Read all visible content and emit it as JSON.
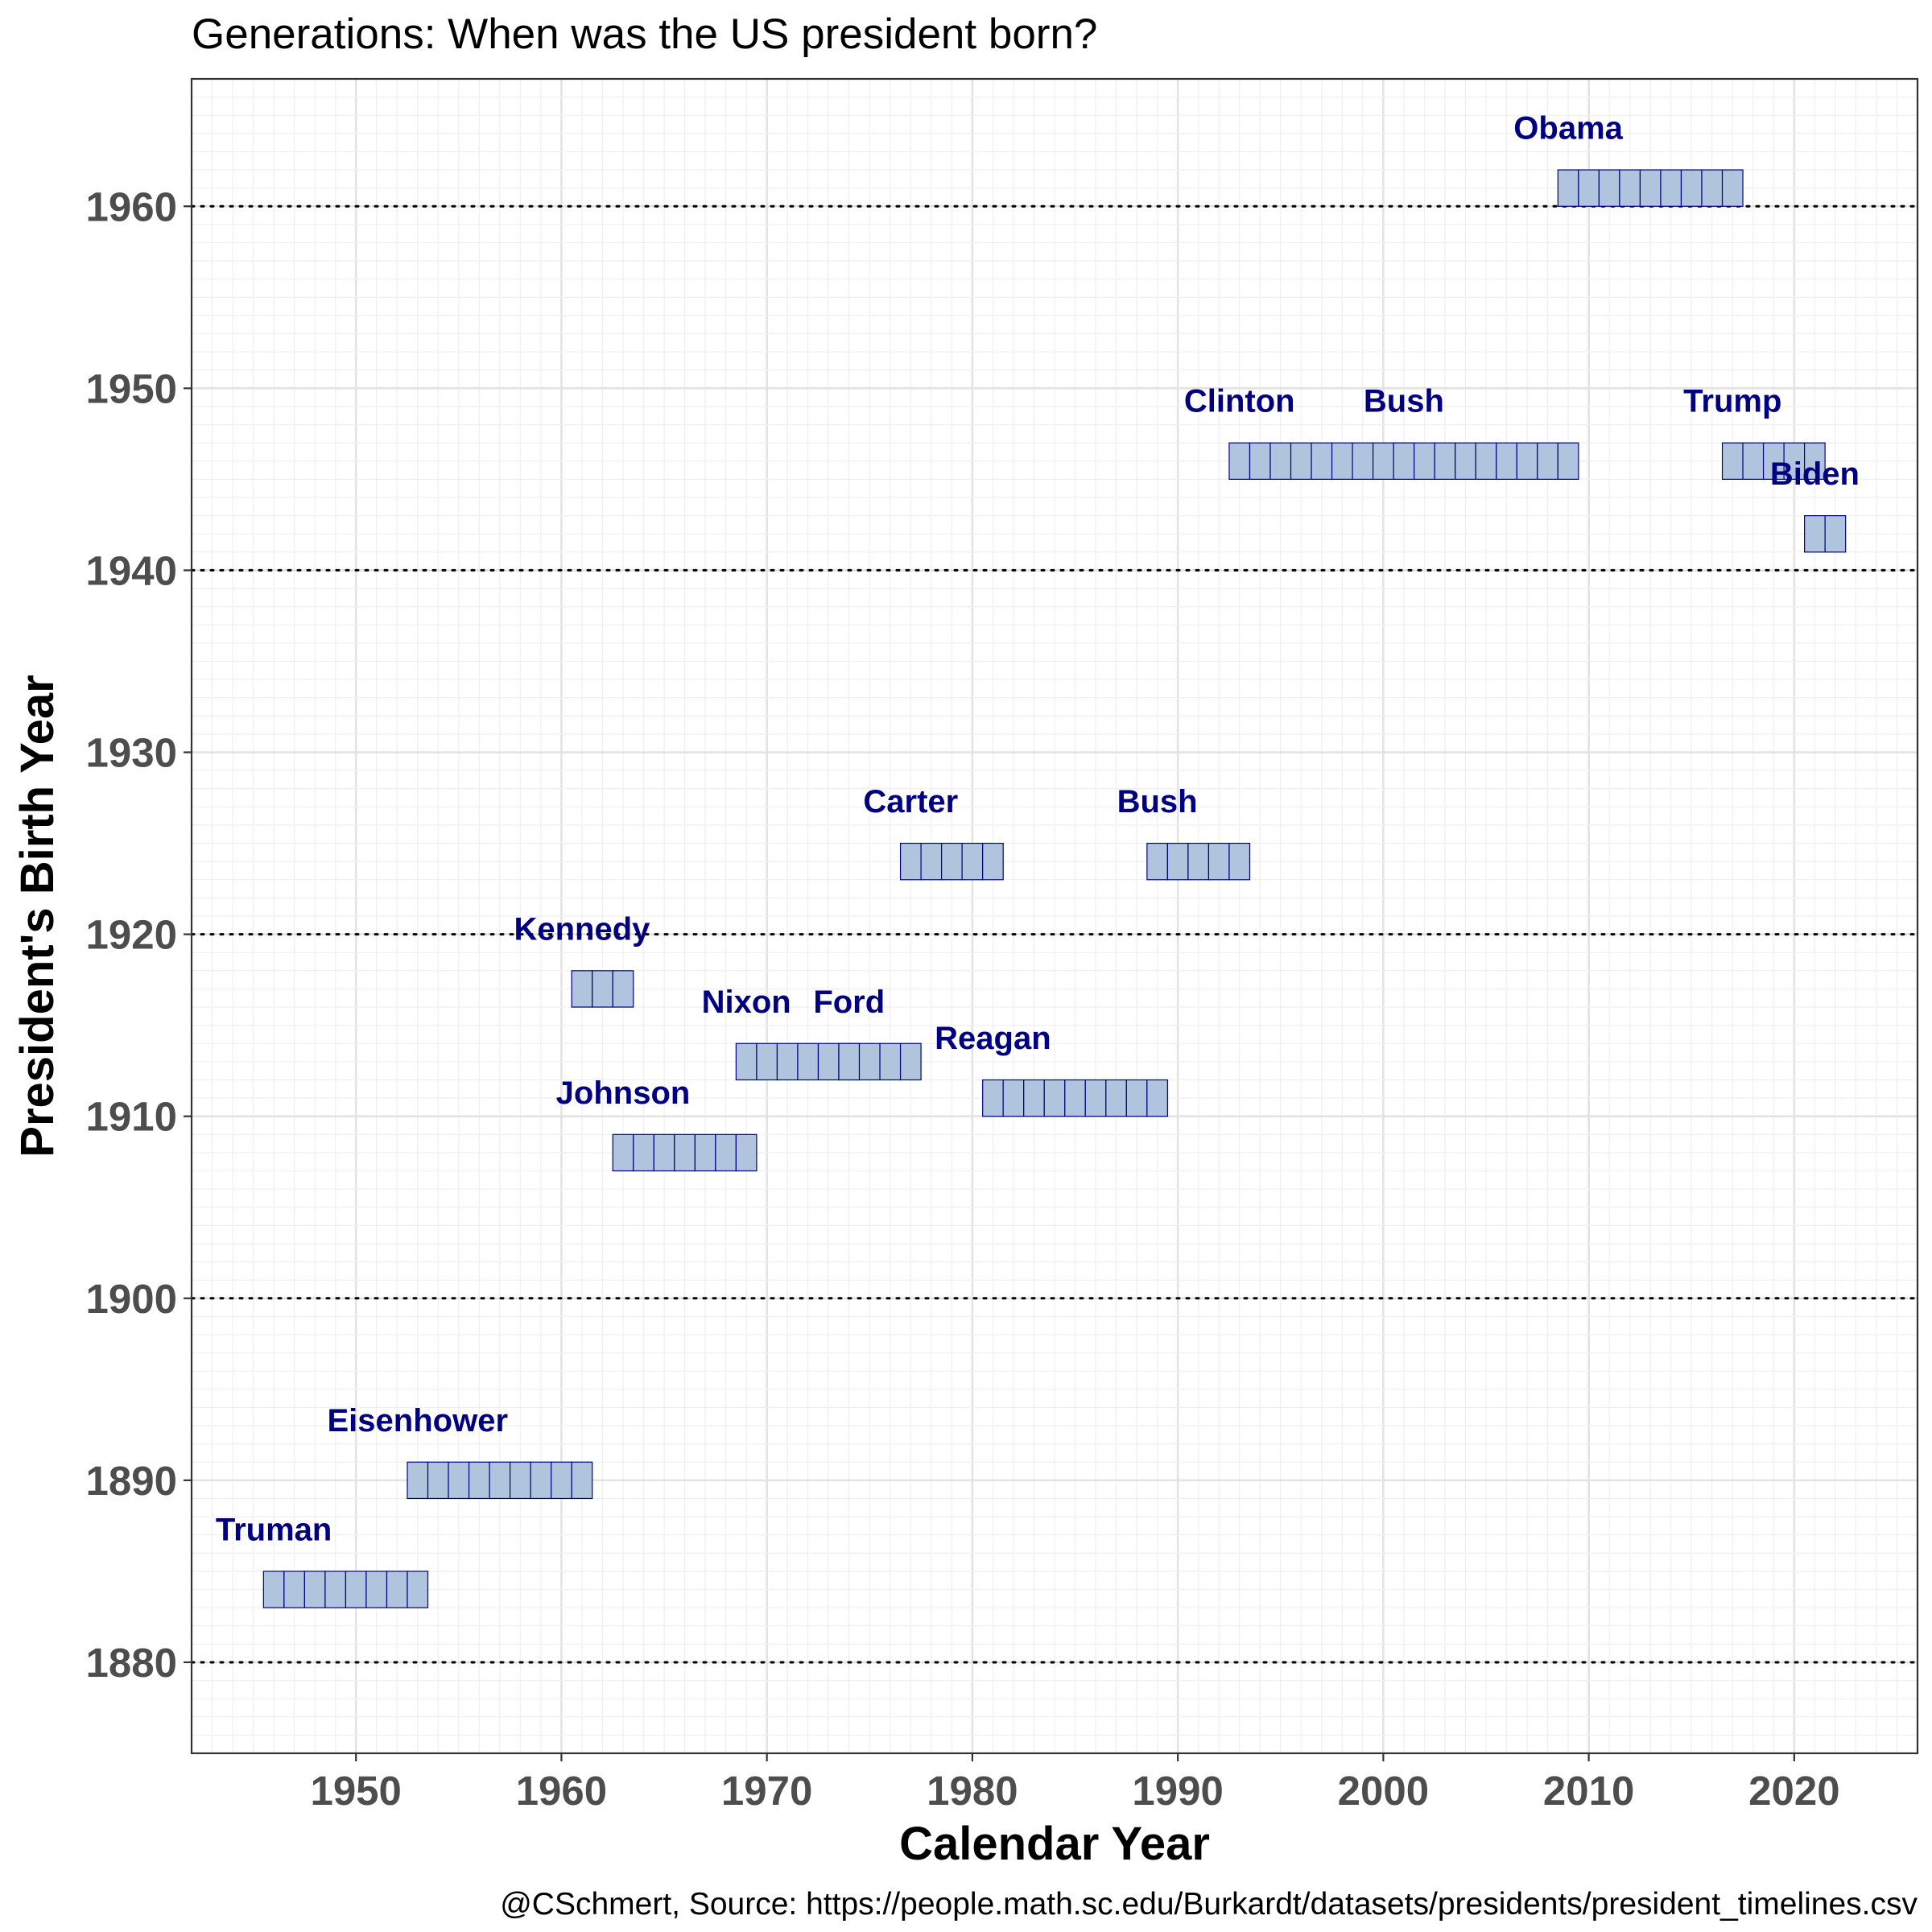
{
  "chart_data": {
    "type": "tile",
    "title": "Generations: When was the US president born?",
    "xlabel": "Calendar Year",
    "ylabel": "President's Birth Year",
    "caption": "@CSchmert, Source: https://people.math.sc.edu/Burkardt/datasets/presidents/president_timelines.csv",
    "xlim": [
      1942,
      2026
    ],
    "ylim": [
      1875,
      1967
    ],
    "x_ticks": [
      1950,
      1960,
      1970,
      1980,
      1990,
      2000,
      2010,
      2020
    ],
    "y_ticks": [
      1880,
      1890,
      1900,
      1910,
      1920,
      1930,
      1940,
      1950,
      1960
    ],
    "reference_lines_y": [
      1880,
      1900,
      1920,
      1940,
      1960
    ],
    "grid": true,
    "tile_fill": "#b0c4de",
    "tile_stroke": "#000080",
    "label_color": "#000080",
    "presidents": [
      {
        "name": "Truman",
        "birth_year": 1884,
        "years": [
          1946,
          1947,
          1948,
          1949,
          1950,
          1951,
          1952,
          1953
        ]
      },
      {
        "name": "Eisenhower",
        "birth_year": 1890,
        "years": [
          1953,
          1954,
          1955,
          1956,
          1957,
          1958,
          1959,
          1960,
          1961
        ]
      },
      {
        "name": "Kennedy",
        "birth_year": 1917,
        "years": [
          1961,
          1962,
          1963
        ]
      },
      {
        "name": "Johnson",
        "birth_year": 1908,
        "years": [
          1963,
          1964,
          1965,
          1966,
          1967,
          1968,
          1969
        ]
      },
      {
        "name": "Nixon",
        "birth_year": 1913,
        "years": [
          1969,
          1970,
          1971,
          1972,
          1973,
          1974
        ]
      },
      {
        "name": "Ford",
        "birth_year": 1913,
        "years": [
          1974,
          1975,
          1976,
          1977
        ]
      },
      {
        "name": "Carter",
        "birth_year": 1924,
        "years": [
          1977,
          1978,
          1979,
          1980,
          1981
        ]
      },
      {
        "name": "Reagan",
        "birth_year": 1911,
        "years": [
          1981,
          1982,
          1983,
          1984,
          1985,
          1986,
          1987,
          1988,
          1989
        ]
      },
      {
        "name": "Bush",
        "birth_year": 1924,
        "years": [
          1989,
          1990,
          1991,
          1992,
          1993
        ]
      },
      {
        "name": "Clinton",
        "birth_year": 1946,
        "years": [
          1993,
          1994,
          1995,
          1996,
          1997,
          1998,
          1999,
          2000,
          2001
        ]
      },
      {
        "name": "Bush",
        "birth_year": 1946,
        "years": [
          2001,
          2002,
          2003,
          2004,
          2005,
          2006,
          2007,
          2008,
          2009
        ]
      },
      {
        "name": "Obama",
        "birth_year": 1961,
        "years": [
          2009,
          2010,
          2011,
          2012,
          2013,
          2014,
          2015,
          2016,
          2017
        ]
      },
      {
        "name": "Trump",
        "birth_year": 1946,
        "years": [
          2017,
          2018,
          2019,
          2020,
          2021
        ]
      },
      {
        "name": "Biden",
        "birth_year": 1942,
        "years": [
          2021,
          2022
        ]
      }
    ]
  }
}
